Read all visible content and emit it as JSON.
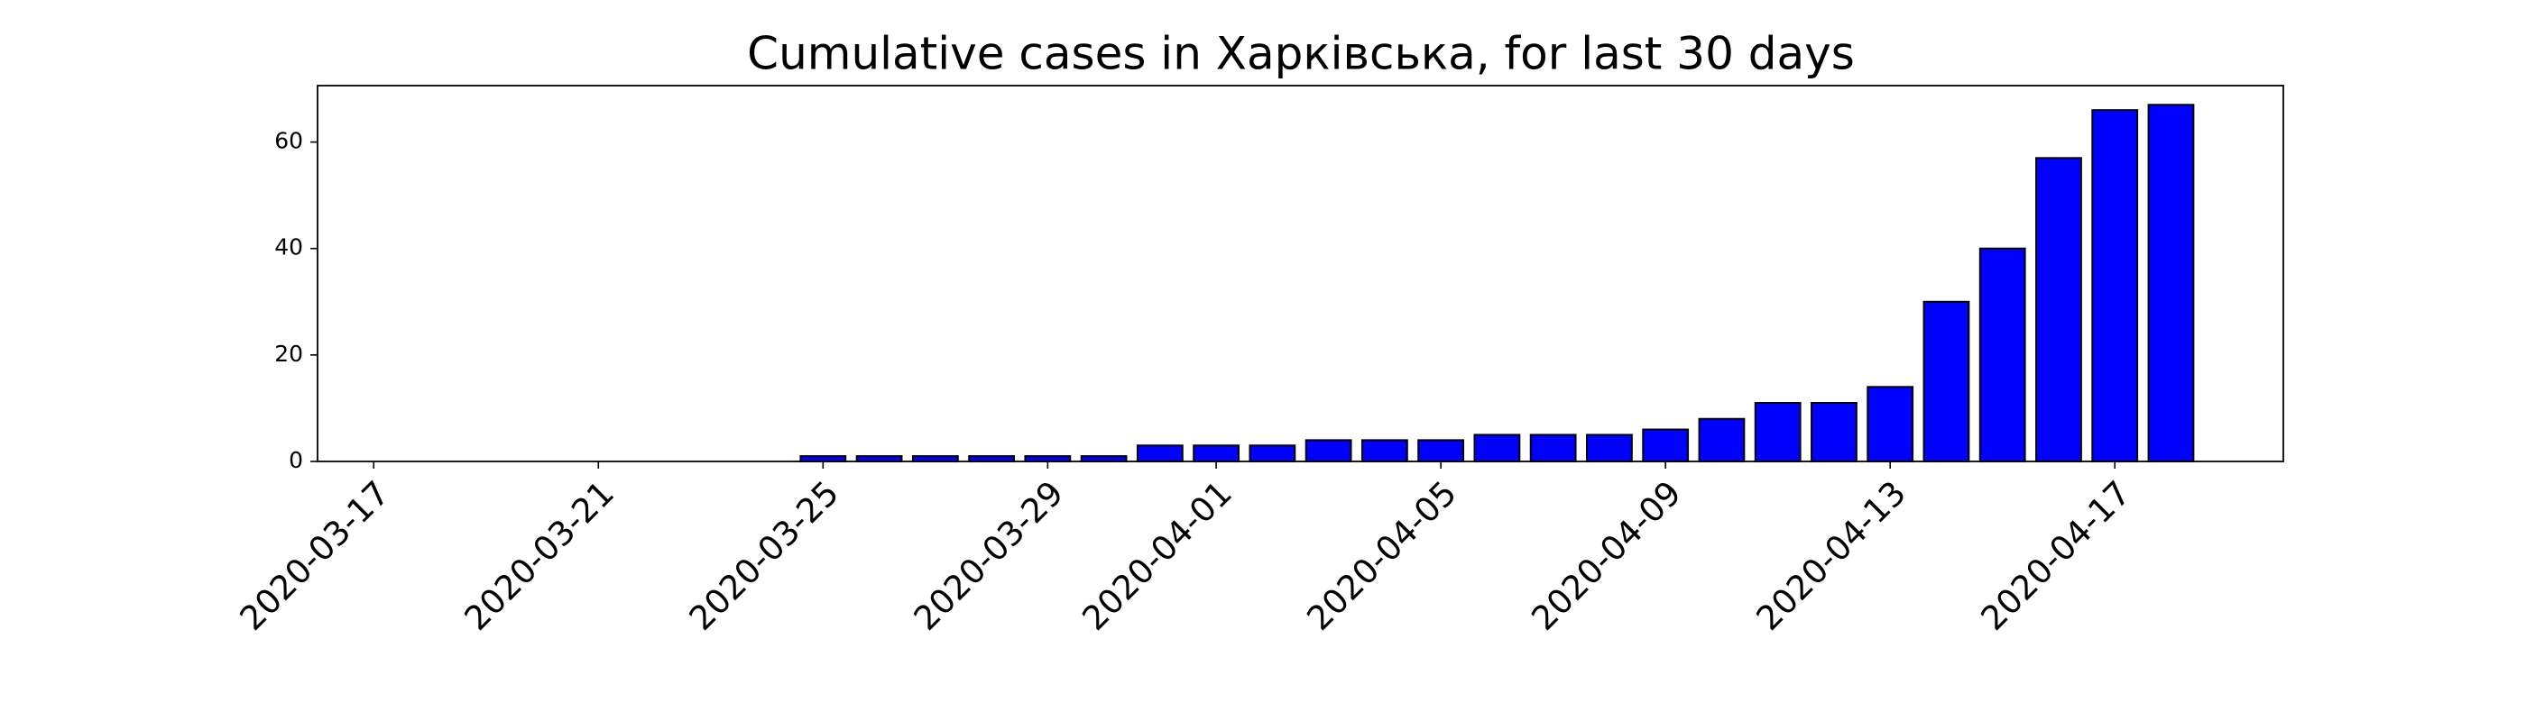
{
  "chart_data": {
    "type": "bar",
    "title": "Cumulative cases in Харківська, for last 30 days",
    "x": [
      "2020-03-20",
      "2020-03-21",
      "2020-03-22",
      "2020-03-23",
      "2020-03-24",
      "2020-03-25",
      "2020-03-26",
      "2020-03-27",
      "2020-03-28",
      "2020-03-29",
      "2020-03-30",
      "2020-03-31",
      "2020-04-01",
      "2020-04-02",
      "2020-04-03",
      "2020-04-04",
      "2020-04-05",
      "2020-04-06",
      "2020-04-07",
      "2020-04-08",
      "2020-04-09",
      "2020-04-10",
      "2020-04-11",
      "2020-04-12",
      "2020-04-13",
      "2020-04-14",
      "2020-04-15",
      "2020-04-16",
      "2020-04-17",
      "2020-04-18"
    ],
    "values": [
      0,
      0,
      0,
      0,
      0,
      1,
      1,
      1,
      1,
      1,
      1,
      3,
      3,
      3,
      4,
      4,
      4,
      5,
      5,
      5,
      6,
      8,
      11,
      11,
      14,
      30,
      40,
      57,
      66,
      67
    ],
    "color": "#0000ff",
    "edgecolor": "#000000",
    "xlim": [
      "2020-03-16",
      "2020-04-20"
    ],
    "xticks": [
      "2020-03-17",
      "2020-03-21",
      "2020-03-25",
      "2020-03-29",
      "2020-04-01",
      "2020-04-05",
      "2020-04-09",
      "2020-04-13",
      "2020-04-17"
    ],
    "ylim": [
      0,
      70.6
    ],
    "yticks": [
      0,
      20,
      40,
      60
    ],
    "grid": false
  }
}
